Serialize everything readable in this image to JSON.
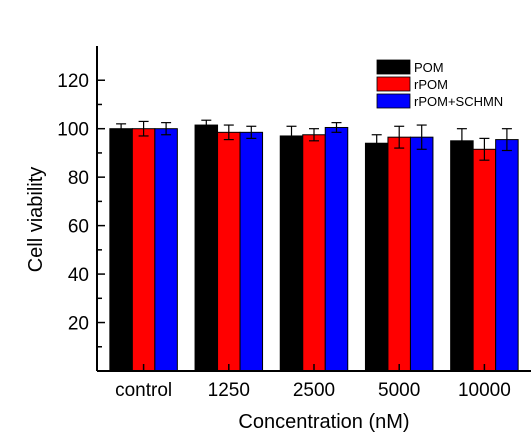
{
  "chart_data": {
    "type": "bar",
    "title": "",
    "xlabel": "Concentration (nM)",
    "ylabel": "Cell viability",
    "categories": [
      "control",
      "1250",
      "2500",
      "5000",
      "10000"
    ],
    "ylim": [
      0,
      130
    ],
    "yticks": [
      20,
      40,
      60,
      80,
      100,
      120
    ],
    "legend_position": "top-right",
    "grid": false,
    "series": [
      {
        "name": "POM",
        "color": "#000000",
        "values": [
          100,
          101.5,
          97,
          94,
          95
        ],
        "errors": [
          2,
          2,
          4,
          3.5,
          5
        ]
      },
      {
        "name": "rPOM",
        "color": "#ff0000",
        "values": [
          100,
          98.5,
          97.5,
          96.5,
          91.5
        ],
        "errors": [
          3,
          3,
          2.5,
          4.5,
          4.5
        ]
      },
      {
        "name": "rPOM+SCHMN",
        "color": "#0000ff",
        "values": [
          100,
          98.5,
          100.5,
          96.5,
          95.5
        ],
        "errors": [
          2.5,
          2.5,
          2,
          5,
          4.5
        ]
      }
    ]
  }
}
